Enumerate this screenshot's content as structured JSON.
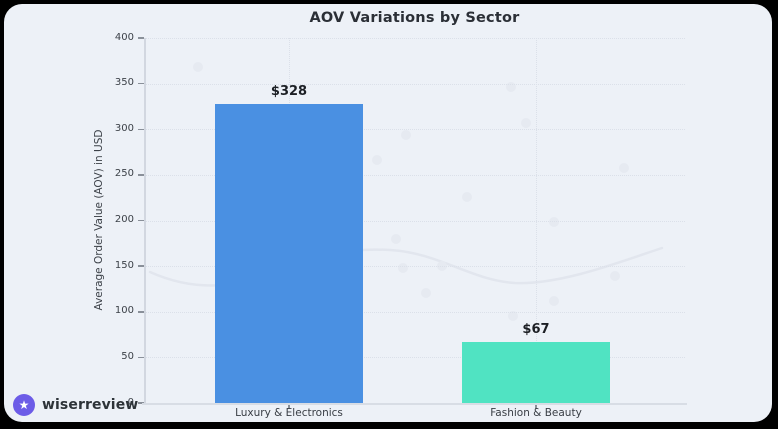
{
  "title": "AOV Variations by Sector",
  "branding": {
    "logo_text": "wiserreview",
    "logo_icon": "star-icon",
    "logo_color": "#6c5ce7"
  },
  "chart_data": {
    "type": "bar",
    "title": "AOV Variations by Sector",
    "categories": [
      "Luxury & Electronics",
      "Fashion & Beauty"
    ],
    "values": [
      328,
      67
    ],
    "value_labels": [
      "$328",
      "$67"
    ],
    "bar_colors": [
      "#4a90e2",
      "#50e3c2"
    ],
    "xlabel": "",
    "ylabel": "Average Order Value (AOV) in USD",
    "ylim": [
      0,
      400
    ],
    "yticks": [
      0,
      50,
      100,
      150,
      200,
      250,
      300,
      350,
      400
    ],
    "grid": true,
    "legend": "none"
  },
  "colors": {
    "frame": "#000000",
    "panel_bg": "#edf1f7",
    "grid": "#dbe0e9",
    "axis": "#d5dae3",
    "text_dark": "#2b2f36"
  }
}
